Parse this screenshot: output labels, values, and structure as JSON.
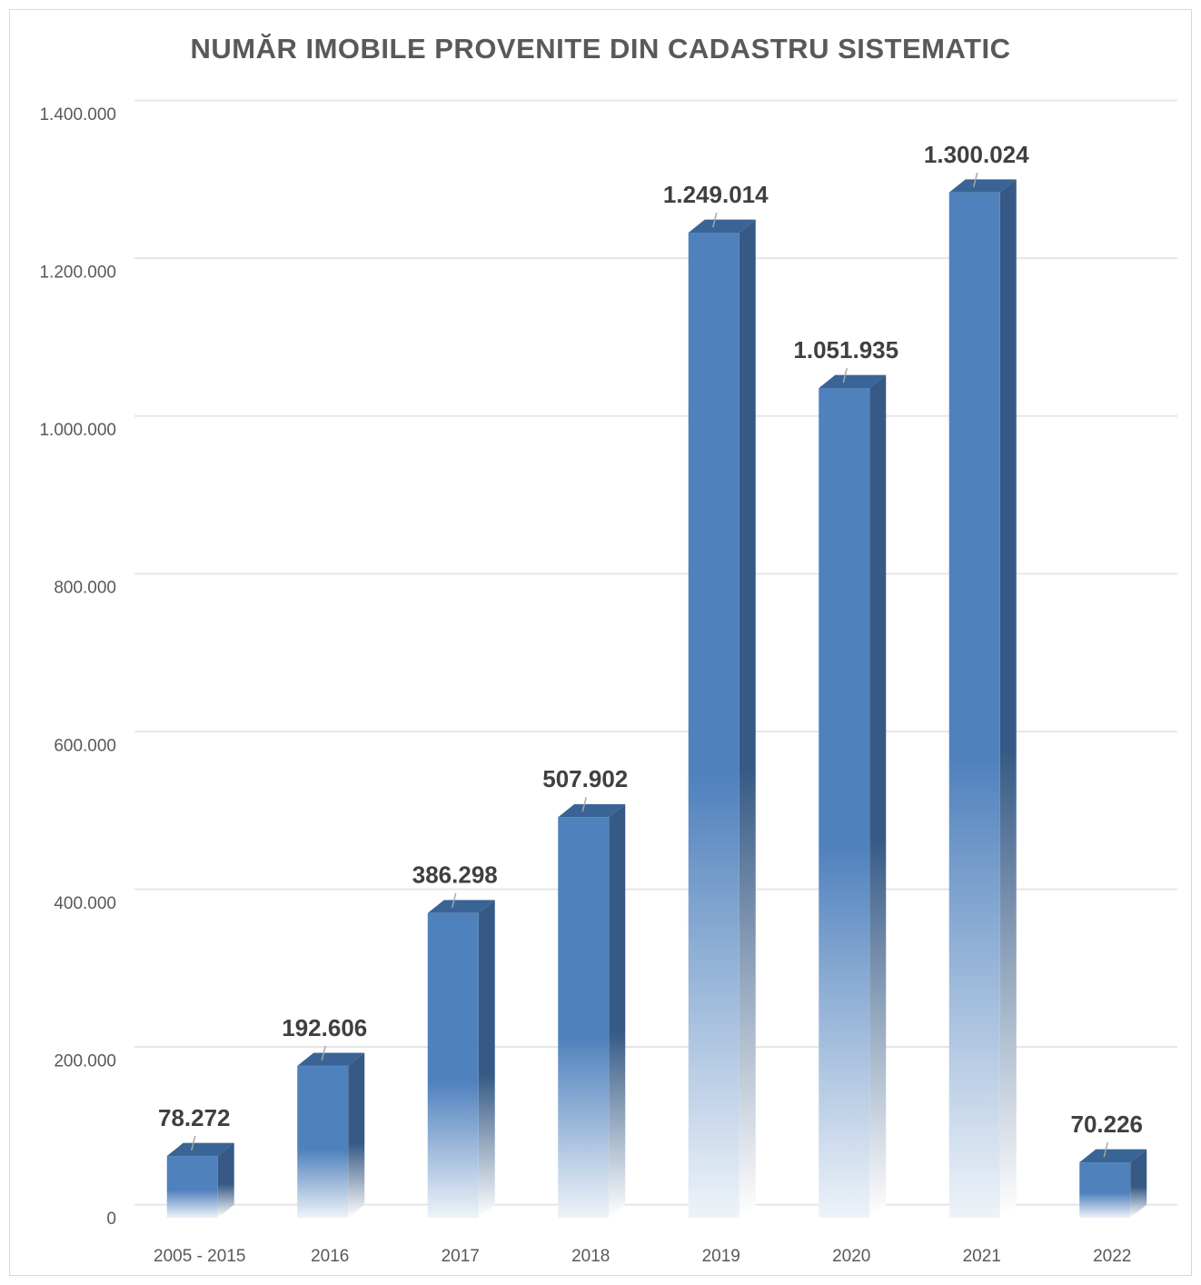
{
  "chart_data": {
    "type": "bar",
    "title": "NUMĂR IMOBILE PROVENITE DIN CADASTRU SISTEMATIC",
    "xlabel": "",
    "ylabel": "",
    "categories": [
      "2005 - 2015",
      "2016",
      "2017",
      "2018",
      "2019",
      "2020",
      "2021",
      "2022"
    ],
    "values": [
      78272,
      192606,
      386298,
      507902,
      1249014,
      1051935,
      1300024,
      70226
    ],
    "data_labels": [
      "78.272",
      "192.606",
      "386.298",
      "507.902",
      "1.249.014",
      "1.051.935",
      "1.300.024",
      "70.226"
    ],
    "ylim": [
      0,
      1400000
    ],
    "yticks": [
      0,
      200000,
      400000,
      600000,
      800000,
      1000000,
      1200000,
      1400000
    ],
    "ytick_labels": [
      "0",
      "200.000",
      "400.000",
      "600.000",
      "800.000",
      "1.000.000",
      "1.200.000",
      "1.400.000"
    ],
    "grid": true,
    "legend": "none",
    "style": "3d-column",
    "colors": {
      "bar_front": "#4f81bd",
      "bar_side": "#365a85",
      "bar_top": "#3a6496",
      "bar_fade": "#eef3f9",
      "grid": "#e6e6e6",
      "axis_text": "#595959",
      "label_text": "#404040"
    }
  }
}
